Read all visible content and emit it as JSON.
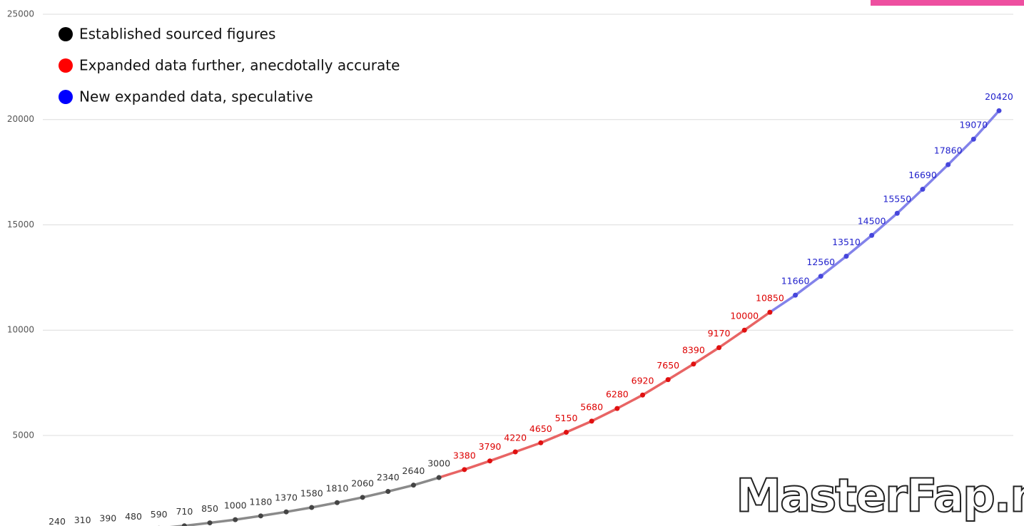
{
  "chart_data": {
    "type": "line",
    "series": [
      {
        "name": "Established sourced figures",
        "color": "#000000",
        "line_color": "#8a8a8a",
        "point_color": "#444444",
        "label_color": "#333333",
        "values": [
          240,
          310,
          390,
          480,
          590,
          710,
          850,
          1000,
          1180,
          1370,
          1580,
          1810,
          2060,
          2340,
          2640,
          3000,
          null,
          null,
          null,
          null,
          null,
          null,
          null,
          null,
          null,
          null,
          null,
          null,
          null,
          null,
          null,
          null,
          null,
          null,
          null,
          null,
          null,
          null
        ]
      },
      {
        "name": "Expanded data further, anecdotally accurate",
        "color": "#ff0000",
        "line_color": "#e86464",
        "point_color": "#e01010",
        "label_color": "#dd0000",
        "values": [
          null,
          null,
          null,
          null,
          null,
          null,
          null,
          null,
          null,
          null,
          null,
          null,
          null,
          null,
          null,
          null,
          3380,
          3790,
          4220,
          4650,
          5150,
          5680,
          6280,
          6920,
          7650,
          8390,
          9170,
          10000,
          10850,
          null,
          null,
          null,
          null,
          null,
          null,
          null,
          null,
          null
        ]
      },
      {
        "name": "New expanded data, speculative",
        "color": "#0000ff",
        "line_color": "#8282ea",
        "point_color": "#4646dc",
        "label_color": "#2222cc",
        "values": [
          null,
          null,
          null,
          null,
          null,
          null,
          null,
          null,
          null,
          null,
          null,
          null,
          null,
          null,
          null,
          null,
          null,
          null,
          null,
          null,
          null,
          null,
          null,
          null,
          null,
          null,
          null,
          null,
          null,
          11660,
          12560,
          13510,
          14500,
          15550,
          16690,
          17860,
          19070,
          20420
        ]
      }
    ],
    "ylim": [
      700,
      25000
    ],
    "yticks": [
      5000,
      10000,
      15000,
      20000,
      25000
    ],
    "grid": true,
    "legend": "top-left"
  },
  "watermark": "MasterFap.net"
}
